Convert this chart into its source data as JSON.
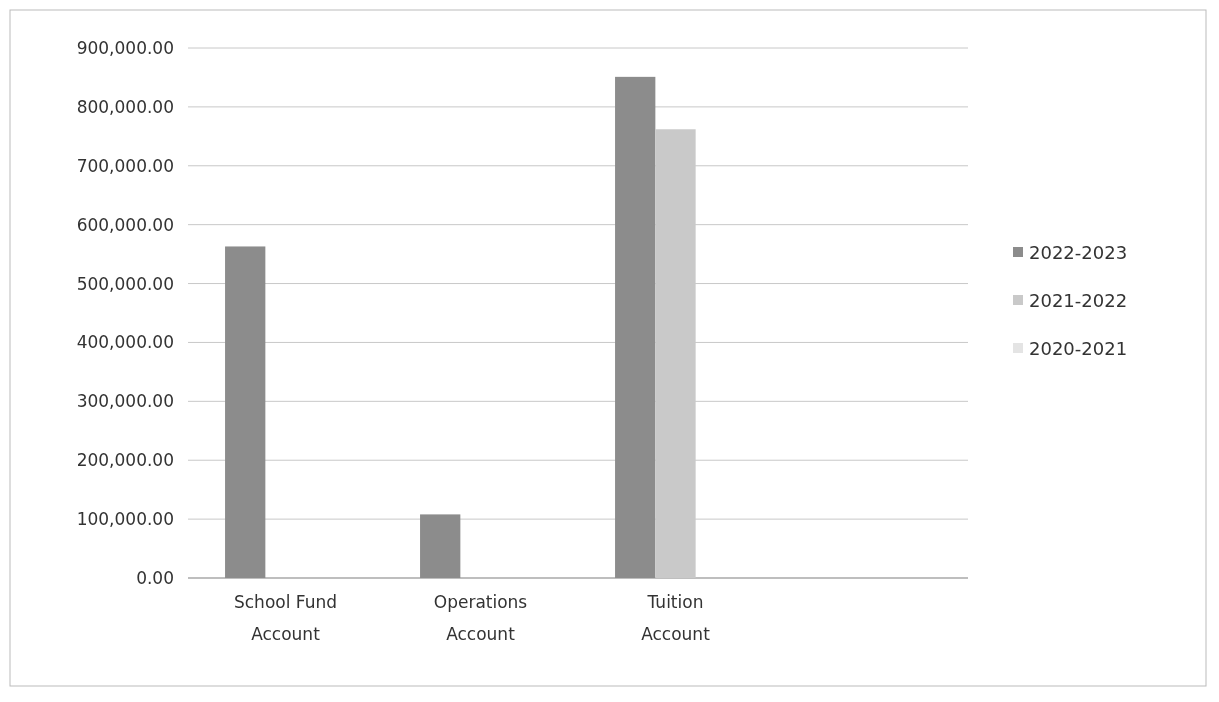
{
  "chart_data": {
    "type": "bar",
    "categories": [
      "School Fund Account",
      "Operations Account",
      "Tuition Account",
      null
    ],
    "series": [
      {
        "name": "2022-2023",
        "color": "#8c8c8c",
        "values": [
          563000,
          108000,
          851000,
          null
        ]
      },
      {
        "name": "2021-2022",
        "color": "#c9c9c9",
        "values": [
          null,
          null,
          762000,
          null
        ]
      },
      {
        "name": "2020-2021",
        "color": "#e4e4e4",
        "values": [
          null,
          null,
          null,
          null
        ]
      }
    ],
    "ylim": [
      0,
      900000
    ],
    "yticks": [
      {
        "value": 0,
        "label": "0.00"
      },
      {
        "value": 100000,
        "label": "100,000.00"
      },
      {
        "value": 200000,
        "label": "200,000.00"
      },
      {
        "value": 300000,
        "label": "300,000.00"
      },
      {
        "value": 400000,
        "label": "400,000.00"
      },
      {
        "value": 500000,
        "label": "500,000.00"
      },
      {
        "value": 600000,
        "label": "600,000.00"
      },
      {
        "value": 700000,
        "label": "700,000.00"
      },
      {
        "value": 800000,
        "label": "800,000.00"
      },
      {
        "value": 900000,
        "label": "900,000.00"
      }
    ],
    "grid": "y",
    "legend": "right"
  }
}
